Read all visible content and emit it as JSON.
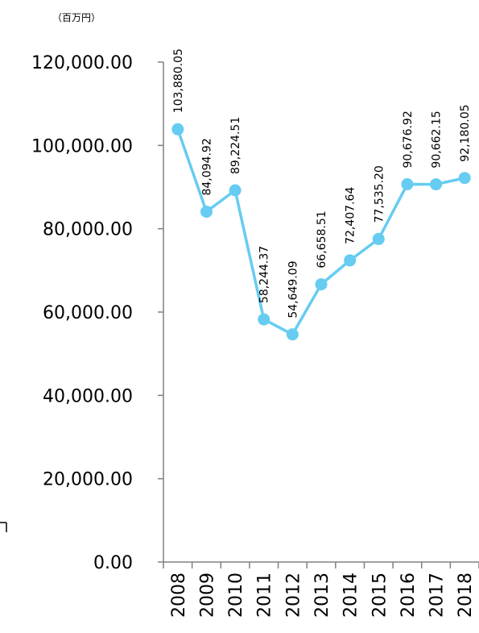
{
  "chart_data": {
    "type": "line",
    "unit_label": "（百万円）",
    "categories": [
      "2008",
      "2009",
      "2010",
      "2011",
      "2012",
      "2013",
      "2014",
      "2015",
      "2016",
      "2017",
      "2018"
    ],
    "values": [
      103880.05,
      84094.92,
      89224.51,
      58244.37,
      54649.09,
      66658.51,
      72407.64,
      77535.2,
      90676.92,
      90662.15,
      92180.05
    ],
    "data_labels": [
      "103,880.05",
      "84,094.92",
      "89,224.51",
      "58,244.37",
      "54,649.09",
      "66,658.51",
      "72,407.64",
      "77,535.20",
      "90,676.92",
      "90,662.15",
      "92,180.05"
    ],
    "y_ticks": [
      0,
      20000,
      40000,
      60000,
      80000,
      100000,
      120000
    ],
    "y_tick_labels": [
      "0.00",
      "20,000.00",
      "40,000.00",
      "60,000.00",
      "80,000.00",
      "100,000.00",
      "120,000.00"
    ],
    "ylim": [
      0,
      120000
    ],
    "grid": false,
    "colors": {
      "series": "#66ccf2",
      "axis": "#808080"
    }
  }
}
